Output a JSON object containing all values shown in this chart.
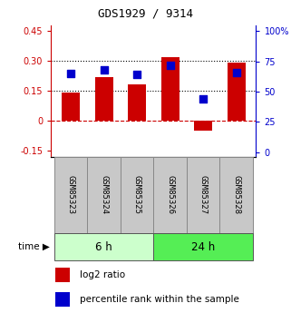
{
  "title": "GDS1929 / 9314",
  "samples": [
    "GSM85323",
    "GSM85324",
    "GSM85325",
    "GSM85326",
    "GSM85327",
    "GSM85328"
  ],
  "log2_ratio": [
    0.14,
    0.22,
    0.18,
    0.32,
    -0.05,
    0.29
  ],
  "percentile_rank": [
    65,
    68,
    64,
    72,
    44,
    66
  ],
  "groups": [
    {
      "label": "6 h",
      "color_light": "#ccffcc",
      "color_dark": "#44ee44",
      "count": 3
    },
    {
      "label": "24 h",
      "color_light": "#44ee44",
      "color_dark": "#22cc22",
      "count": 3
    }
  ],
  "bar_color": "#cc0000",
  "dot_color": "#0000cc",
  "ylim_left": [
    -0.18,
    0.48
  ],
  "ylim_right": [
    -3.75,
    105
  ],
  "yticks_left": [
    -0.15,
    0.0,
    0.15,
    0.3,
    0.45
  ],
  "yticks_left_labels": [
    "-0.15",
    "0",
    "0.15",
    "0.30",
    "0.45"
  ],
  "yticks_right": [
    0,
    25,
    50,
    75,
    100
  ],
  "yticks_right_labels": [
    "0",
    "25",
    "50",
    "75",
    "100%"
  ],
  "hline_zero_color": "#cc0000",
  "hline_zero_style": "--",
  "hline_dotted_color": "#000000",
  "hline_dotted_style": ":",
  "hline_vals": [
    0.15,
    0.3
  ],
  "bar_width": 0.55,
  "dot_size": 35,
  "label_bg_color": "#c8c8c8",
  "label_border_color": "#888888",
  "group_border_color": "#555555",
  "time_label": "time",
  "legend_red_label": "log2 ratio",
  "legend_blue_label": "percentile rank within the sample"
}
